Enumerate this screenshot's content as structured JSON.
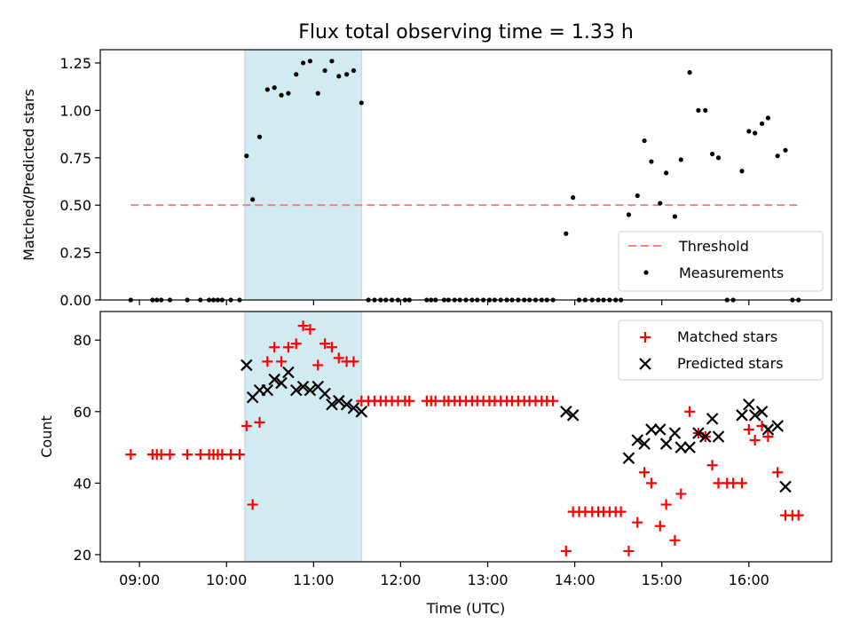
{
  "chart_data": [
    {
      "type": "scatter",
      "title": "Flux total observing time = 1.33 h",
      "xlabel": "",
      "ylabel": "Matched/Predicted stars",
      "ylim": [
        0,
        1.32
      ],
      "yticks": [
        "0.00",
        "0.25",
        "0.50",
        "0.75",
        "1.00",
        "1.25"
      ],
      "ytick_values": [
        0,
        0.25,
        0.5,
        0.75,
        1.0,
        1.25
      ],
      "xlim_hours": [
        8.55,
        16.95
      ],
      "shaded_span_hours": [
        10.21,
        11.55
      ],
      "shaded_color": "#add8e6",
      "threshold": {
        "name": "Threshold",
        "value": 0.5,
        "x_range_hours": [
          8.9,
          16.6
        ],
        "color": "#ff7f7f"
      },
      "series": [
        {
          "name": "Measurements",
          "color": "#000000",
          "points": [
            [
              8.9,
              0
            ],
            [
              9.15,
              0
            ],
            [
              9.2,
              0
            ],
            [
              9.25,
              0
            ],
            [
              9.35,
              0
            ],
            [
              9.55,
              0
            ],
            [
              9.7,
              0
            ],
            [
              9.8,
              0
            ],
            [
              9.85,
              0
            ],
            [
              9.9,
              0
            ],
            [
              9.95,
              0
            ],
            [
              10.05,
              0
            ],
            [
              10.15,
              0
            ],
            [
              10.23,
              0.76
            ],
            [
              10.3,
              0.53
            ],
            [
              10.38,
              0.86
            ],
            [
              10.47,
              1.11
            ],
            [
              10.55,
              1.12
            ],
            [
              10.63,
              1.08
            ],
            [
              10.71,
              1.09
            ],
            [
              10.8,
              1.19
            ],
            [
              10.88,
              1.25
            ],
            [
              10.96,
              1.26
            ],
            [
              11.05,
              1.09
            ],
            [
              11.13,
              1.21
            ],
            [
              11.21,
              1.26
            ],
            [
              11.29,
              1.18
            ],
            [
              11.38,
              1.19
            ],
            [
              11.46,
              1.21
            ],
            [
              11.55,
              1.04
            ],
            [
              11.63,
              0
            ],
            [
              11.7,
              0
            ],
            [
              11.77,
              0
            ],
            [
              11.83,
              0
            ],
            [
              11.9,
              0
            ],
            [
              11.97,
              0
            ],
            [
              12.05,
              0
            ],
            [
              12.1,
              0
            ],
            [
              12.3,
              0
            ],
            [
              12.35,
              0
            ],
            [
              12.4,
              0
            ],
            [
              12.5,
              0
            ],
            [
              12.55,
              0
            ],
            [
              12.62,
              0
            ],
            [
              12.68,
              0
            ],
            [
              12.75,
              0
            ],
            [
              12.82,
              0
            ],
            [
              12.88,
              0
            ],
            [
              12.95,
              0
            ],
            [
              13.02,
              0
            ],
            [
              13.08,
              0
            ],
            [
              13.15,
              0
            ],
            [
              13.22,
              0
            ],
            [
              13.28,
              0
            ],
            [
              13.35,
              0
            ],
            [
              13.42,
              0
            ],
            [
              13.48,
              0
            ],
            [
              13.55,
              0
            ],
            [
              13.62,
              0
            ],
            [
              13.68,
              0
            ],
            [
              13.75,
              0
            ],
            [
              13.9,
              0.35
            ],
            [
              13.98,
              0.54
            ],
            [
              14.05,
              0
            ],
            [
              14.12,
              0
            ],
            [
              14.2,
              0
            ],
            [
              14.27,
              0
            ],
            [
              14.33,
              0
            ],
            [
              14.4,
              0
            ],
            [
              14.47,
              0
            ],
            [
              14.53,
              0
            ],
            [
              14.62,
              0.45
            ],
            [
              14.72,
              0.55
            ],
            [
              14.8,
              0.84
            ],
            [
              14.88,
              0.73
            ],
            [
              14.98,
              0.51
            ],
            [
              15.05,
              0.67
            ],
            [
              15.15,
              0.44
            ],
            [
              15.22,
              0.74
            ],
            [
              15.32,
              1.2
            ],
            [
              15.42,
              1.0
            ],
            [
              15.5,
              1.0
            ],
            [
              15.58,
              0.77
            ],
            [
              15.65,
              0.75
            ],
            [
              15.75,
              0
            ],
            [
              15.82,
              0
            ],
            [
              15.92,
              0.68
            ],
            [
              16.0,
              0.89
            ],
            [
              16.07,
              0.88
            ],
            [
              16.15,
              0.93
            ],
            [
              16.22,
              0.96
            ],
            [
              16.33,
              0.76
            ],
            [
              16.42,
              0.79
            ],
            [
              16.5,
              0
            ],
            [
              16.57,
              0
            ]
          ]
        }
      ],
      "legend": {
        "placement": "lower-right",
        "entries": [
          "Threshold",
          "Measurements"
        ]
      }
    },
    {
      "type": "scatter",
      "title": "",
      "xlabel": "Time (UTC)",
      "ylabel": "Count",
      "ylim": [
        18,
        88
      ],
      "yticks": [
        "20",
        "40",
        "60",
        "80"
      ],
      "ytick_values": [
        20,
        40,
        60,
        80
      ],
      "xlim_hours": [
        8.55,
        16.95
      ],
      "xticks": [
        "09:00",
        "10:00",
        "11:00",
        "12:00",
        "13:00",
        "14:00",
        "15:00",
        "16:00"
      ],
      "xtick_values_hours": [
        9,
        10,
        11,
        12,
        13,
        14,
        15,
        16
      ],
      "shaded_span_hours": [
        10.21,
        11.55
      ],
      "series": [
        {
          "name": "Matched stars",
          "marker": "plus",
          "color": "#ff0000",
          "points": [
            [
              8.9,
              48
            ],
            [
              9.15,
              48
            ],
            [
              9.2,
              48
            ],
            [
              9.25,
              48
            ],
            [
              9.35,
              48
            ],
            [
              9.55,
              48
            ],
            [
              9.7,
              48
            ],
            [
              9.8,
              48
            ],
            [
              9.85,
              48
            ],
            [
              9.9,
              48
            ],
            [
              9.95,
              48
            ],
            [
              10.05,
              48
            ],
            [
              10.15,
              48
            ],
            [
              10.23,
              56
            ],
            [
              10.3,
              34
            ],
            [
              10.38,
              57
            ],
            [
              10.47,
              74
            ],
            [
              10.55,
              78
            ],
            [
              10.63,
              74
            ],
            [
              10.71,
              78
            ],
            [
              10.8,
              79
            ],
            [
              10.88,
              84
            ],
            [
              10.96,
              83
            ],
            [
              11.05,
              73
            ],
            [
              11.13,
              79
            ],
            [
              11.21,
              78
            ],
            [
              11.29,
              75
            ],
            [
              11.38,
              74
            ],
            [
              11.46,
              74
            ],
            [
              11.55,
              63
            ],
            [
              11.63,
              63
            ],
            [
              11.7,
              63
            ],
            [
              11.77,
              63
            ],
            [
              11.83,
              63
            ],
            [
              11.9,
              63
            ],
            [
              11.97,
              63
            ],
            [
              12.05,
              63
            ],
            [
              12.1,
              63
            ],
            [
              12.3,
              63
            ],
            [
              12.35,
              63
            ],
            [
              12.4,
              63
            ],
            [
              12.5,
              63
            ],
            [
              12.55,
              63
            ],
            [
              12.62,
              63
            ],
            [
              12.68,
              63
            ],
            [
              12.75,
              63
            ],
            [
              12.82,
              63
            ],
            [
              12.88,
              63
            ],
            [
              12.95,
              63
            ],
            [
              13.02,
              63
            ],
            [
              13.08,
              63
            ],
            [
              13.15,
              63
            ],
            [
              13.22,
              63
            ],
            [
              13.28,
              63
            ],
            [
              13.35,
              63
            ],
            [
              13.42,
              63
            ],
            [
              13.48,
              63
            ],
            [
              13.55,
              63
            ],
            [
              13.62,
              63
            ],
            [
              13.68,
              63
            ],
            [
              13.75,
              63
            ],
            [
              13.9,
              21
            ],
            [
              13.98,
              32
            ],
            [
              14.05,
              32
            ],
            [
              14.12,
              32
            ],
            [
              14.2,
              32
            ],
            [
              14.27,
              32
            ],
            [
              14.33,
              32
            ],
            [
              14.4,
              32
            ],
            [
              14.47,
              32
            ],
            [
              14.53,
              32
            ],
            [
              14.62,
              21
            ],
            [
              14.72,
              29
            ],
            [
              14.8,
              43
            ],
            [
              14.88,
              40
            ],
            [
              14.98,
              28
            ],
            [
              15.05,
              34
            ],
            [
              15.15,
              24
            ],
            [
              15.22,
              37
            ],
            [
              15.32,
              60
            ],
            [
              15.42,
              54
            ],
            [
              15.5,
              53
            ],
            [
              15.58,
              45
            ],
            [
              15.65,
              40
            ],
            [
              15.75,
              40
            ],
            [
              15.82,
              40
            ],
            [
              15.92,
              40
            ],
            [
              16.0,
              55
            ],
            [
              16.07,
              52
            ],
            [
              16.15,
              56
            ],
            [
              16.22,
              53
            ],
            [
              16.33,
              43
            ],
            [
              16.42,
              31
            ],
            [
              16.5,
              31
            ],
            [
              16.57,
              31
            ]
          ]
        },
        {
          "name": "Predicted stars",
          "marker": "x",
          "color": "#000000",
          "points": [
            [
              10.23,
              73
            ],
            [
              10.3,
              64
            ],
            [
              10.38,
              66
            ],
            [
              10.47,
              66
            ],
            [
              10.55,
              69
            ],
            [
              10.63,
              68
            ],
            [
              10.71,
              71
            ],
            [
              10.8,
              66
            ],
            [
              10.88,
              67
            ],
            [
              10.96,
              66
            ],
            [
              11.05,
              67
            ],
            [
              11.13,
              65
            ],
            [
              11.21,
              62
            ],
            [
              11.29,
              63
            ],
            [
              11.38,
              62
            ],
            [
              11.46,
              61
            ],
            [
              11.55,
              60
            ],
            [
              13.9,
              60
            ],
            [
              13.98,
              59
            ],
            [
              14.62,
              47
            ],
            [
              14.72,
              52
            ],
            [
              14.8,
              51
            ],
            [
              14.88,
              55
            ],
            [
              14.98,
              55
            ],
            [
              15.05,
              51
            ],
            [
              15.15,
              54
            ],
            [
              15.22,
              50
            ],
            [
              15.32,
              50
            ],
            [
              15.42,
              54
            ],
            [
              15.5,
              53
            ],
            [
              15.58,
              58
            ],
            [
              15.65,
              53
            ],
            [
              15.92,
              59
            ],
            [
              16.0,
              62
            ],
            [
              16.07,
              59
            ],
            [
              16.15,
              60
            ],
            [
              16.22,
              55
            ],
            [
              16.33,
              56
            ],
            [
              16.42,
              39
            ]
          ]
        }
      ],
      "legend": {
        "placement": "upper-right",
        "entries": [
          "Matched stars",
          "Predicted stars"
        ]
      }
    }
  ]
}
